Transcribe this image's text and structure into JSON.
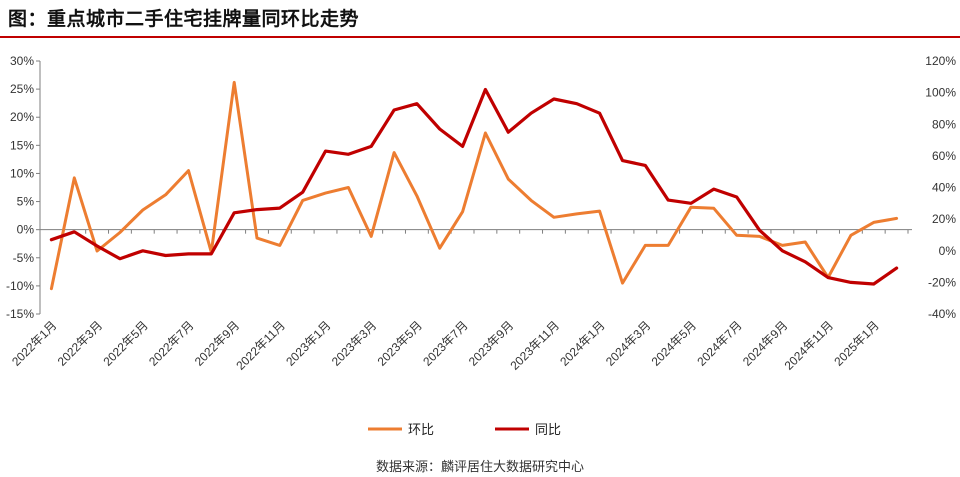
{
  "title": "图：重点城市二手住宅挂牌量同环比走势",
  "source": "数据来源：麟评居住大数据研究中心",
  "colors": {
    "mom": "#ed7d31",
    "yoy": "#c00000",
    "title_rule": "#c00000"
  },
  "chart_data": {
    "type": "line",
    "title": "图：重点城市二手住宅挂牌量同环比走势",
    "x": [
      "2022年1月",
      "2022年2月",
      "2022年3月",
      "2022年4月",
      "2022年5月",
      "2022年6月",
      "2022年7月",
      "2022年8月",
      "2022年9月",
      "2022年10月",
      "2022年11月",
      "2022年12月",
      "2023年1月",
      "2023年2月",
      "2023年3月",
      "2023年4月",
      "2023年5月",
      "2023年6月",
      "2023年7月",
      "2023年8月",
      "2023年9月",
      "2023年10月",
      "2023年11月",
      "2023年12月",
      "2024年1月",
      "2024年2月",
      "2024年3月",
      "2024年4月",
      "2024年5月",
      "2024年6月",
      "2024年7月",
      "2024年8月",
      "2024年9月",
      "2024年10月",
      "2024年11月",
      "2024年12月",
      "2025年1月",
      "2025年2月"
    ],
    "x_tick_labels": [
      "2022年1月",
      "2022年3月",
      "2022年5月",
      "2022年7月",
      "2022年9月",
      "2022年11月",
      "2023年1月",
      "2023年3月",
      "2023年5月",
      "2023年7月",
      "2023年9月",
      "2023年11月",
      "2024年1月",
      "2024年3月",
      "2024年5月",
      "2024年7月",
      "2024年9月",
      "2024年11月",
      "2025年1月"
    ],
    "series": [
      {
        "name": "环比",
        "axis": "left",
        "values": [
          -10.5,
          9.2,
          -3.8,
          -0.5,
          3.5,
          6.2,
          10.5,
          -4.0,
          26.2,
          -1.5,
          -2.8,
          5.2,
          6.5,
          7.5,
          -1.2,
          13.7,
          6.0,
          -3.3,
          3.2,
          17.2,
          9.0,
          5.2,
          2.2,
          2.8,
          3.3,
          -9.5,
          -2.8,
          -2.8,
          4.0,
          3.8,
          -1.0,
          -1.2,
          -2.8,
          -2.2,
          -8.5,
          -1.0,
          1.3,
          2.0
        ]
      },
      {
        "name": "同比",
        "axis": "right",
        "values": [
          7,
          12,
          3,
          -5,
          0,
          -3,
          -2,
          -2,
          24,
          26,
          27,
          37,
          63,
          61,
          66,
          89,
          93,
          77,
          66,
          102,
          75,
          87,
          96,
          93,
          87,
          57,
          54,
          32,
          30,
          39,
          34,
          13,
          0,
          -7,
          -17,
          -20,
          -21,
          -11
        ]
      }
    ],
    "y_left": {
      "ticks": [
        "30%",
        "25%",
        "20%",
        "15%",
        "10%",
        "5%",
        "0%",
        "-5%",
        "-10%",
        "-15%"
      ],
      "ylim": [
        -15,
        30
      ]
    },
    "y_right": {
      "ticks": [
        "120%",
        "100%",
        "80%",
        "60%",
        "40%",
        "20%",
        "0%",
        "-20%",
        "-40%"
      ],
      "ylim": [
        -40,
        120
      ]
    },
    "legend": {
      "placement": "bottom",
      "labels": [
        "环比",
        "同比"
      ]
    },
    "grid": false
  }
}
